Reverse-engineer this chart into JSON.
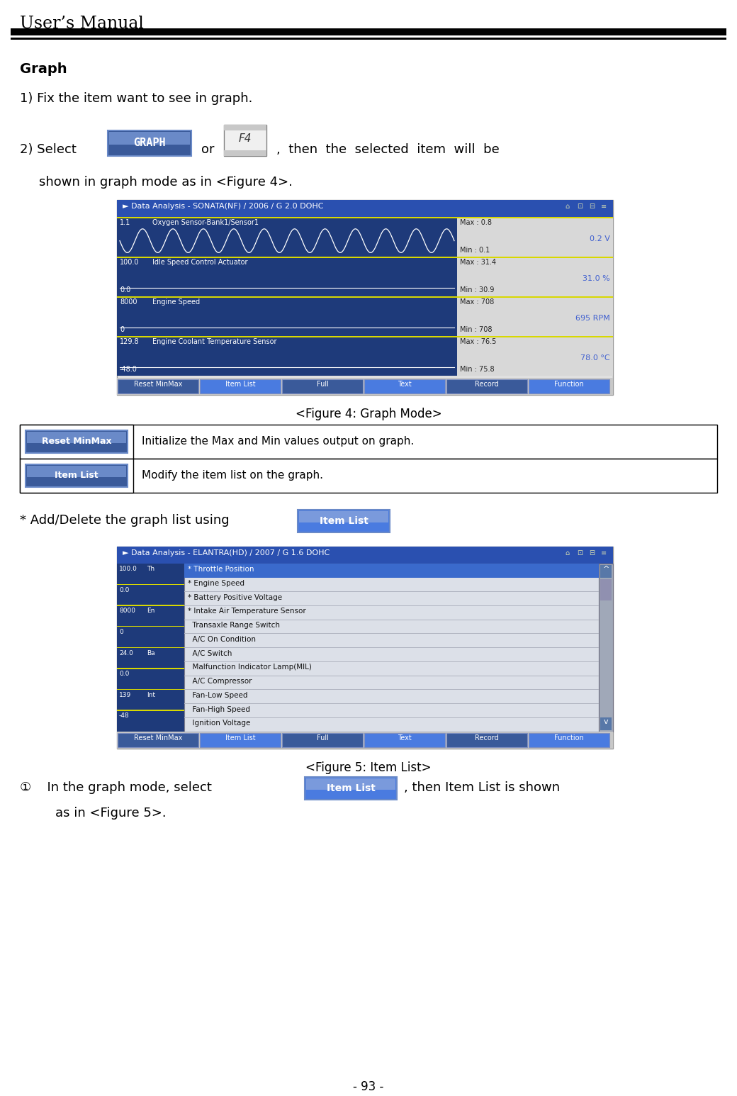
{
  "title": "User’s Manual",
  "page_num": "- 93 -",
  "section": "Graph",
  "step1": "1) Fix the item want to see in graph.",
  "step2_pre": "2) Select",
  "step2_mid": "or",
  "step2_post": ",  then  the  selected  item  will  be",
  "step2_cont": "    shown in graph mode as in <Figure 4>.",
  "graph_btn_text": "GRAPH",
  "f4_btn_text": "F4",
  "figure4_caption": "<Figure 4: Graph Mode>",
  "figure5_caption": "<Figure 5: Item List>",
  "fig4_title": "► Data Analysis - SONATA(NF) / 2006 / G 2.0 DOHC",
  "fig5_title": "► Data Analysis - ELANTRA(HD) / 2007 / G 1.6 DOHC",
  "fig4_buttons": [
    "Reset MinMax",
    "Item List",
    "Full",
    "Text",
    "Record",
    "Function"
  ],
  "table_rows": [
    {
      "btn": "Reset MinMax",
      "desc": "Initialize the Max and Min values output on graph."
    },
    {
      "btn": "Item List",
      "desc": "Modify the item list on the graph."
    }
  ],
  "add_delete_text": "* Add/Delete the graph list using",
  "item_list_btn": "Item List",
  "fig5_items": [
    "* Throttle Position",
    "* Engine Speed",
    "* Battery Positive Voltage",
    "* Intake Air Temperature Sensor",
    "  Transaxle Range Switch",
    "  A/C On Condition",
    "  A/C Switch",
    "  Malfunction Indicator Lamp(MIL)",
    "  A/C Compressor",
    "  Fan-Low Speed",
    "  Fan-High Speed",
    "  Ignition Voltage"
  ],
  "fig5_left_labels": [
    "100.0",
    "0.0",
    "8000",
    "0",
    "24.0",
    "0.0",
    "139",
    "-48"
  ],
  "fig5_left_abbr": [
    "Th",
    "",
    "En",
    "",
    "Ba",
    "",
    "Int",
    ""
  ],
  "step3_pre": "  In the graph mode, select",
  "step3_btn": "Item List",
  "step3_post": ", then Item List is shown",
  "step3_cont": "    as in <Figure 5>.",
  "bg_white": "#ffffff",
  "text_blue": "#4060d0",
  "fig_dark_blue": "#1e3a7a",
  "title_bar_blue": "#2a50b0",
  "btn_blue_dark": "#3a5a9a",
  "btn_blue_light": "#6a8ac8",
  "selected_blue": "#4a7be0",
  "yellow_line": "#d8d800",
  "fig_bg_light": "#e0e0e0",
  "right_panel_bg": "#d8d8d8",
  "panel_list_bg": "#dce0e8",
  "scrollbar_bg": "#a0a8b8",
  "scrollbar_btn": "#5878a8"
}
